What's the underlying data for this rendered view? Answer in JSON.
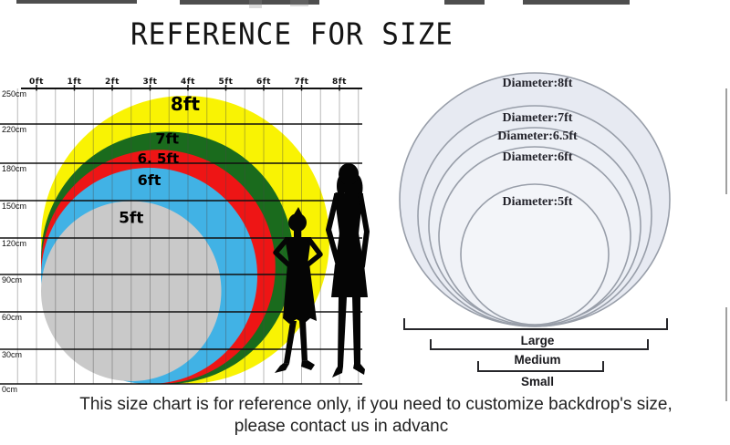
{
  "header": {
    "title": "REFERENCE FOR SIZE"
  },
  "footer": {
    "line1": "This size chart is for reference only, if you need to customize backdrop's size,",
    "line2": "please contact us in advanc"
  },
  "chart_data": [
    {
      "type": "nested-circles",
      "title": "Backdrop size comparison with human figures",
      "x_axis": {
        "unit": "ft",
        "ticks": [
          "0ft",
          "1ft",
          "2ft",
          "3ft",
          "4ft",
          "5ft",
          "6ft",
          "7ft",
          "8ft"
        ],
        "range_ft": [
          0,
          8.6
        ]
      },
      "y_axis": {
        "unit": "cm",
        "ticks": [
          "250cm",
          "220cm",
          "180cm",
          "150cm",
          "120cm",
          "90cm",
          "60cm",
          "30cm",
          "0cm"
        ],
        "range_cm": [
          0,
          250
        ]
      },
      "grid": true,
      "circles": [
        {
          "label": "8ft",
          "diameter_ft": 8,
          "color": "#f9f303"
        },
        {
          "label": "7ft",
          "diameter_ft": 7,
          "color": "#1a6b1d"
        },
        {
          "label": "6. 5ft",
          "diameter_ft": 6.5,
          "color": "#ee1515"
        },
        {
          "label": "6ft",
          "diameter_ft": 6,
          "color": "#41b2e5"
        },
        {
          "label": "5ft",
          "diameter_ft": 5,
          "color": "#c9c9c9"
        }
      ],
      "figures": [
        "child-silhouette",
        "woman-silhouette"
      ]
    },
    {
      "type": "nested-circles",
      "title": "Backdrop diameters",
      "circles": [
        {
          "label": "Diameter:8ft",
          "diameter_ft": 8
        },
        {
          "label": "Diameter:7ft",
          "diameter_ft": 7
        },
        {
          "label": "Diameter:6.5ft",
          "diameter_ft": 6.5
        },
        {
          "label": "Diameter:6ft",
          "diameter_ft": 6
        },
        {
          "label": "Diameter:5ft",
          "diameter_ft": 5
        }
      ],
      "size_groups": [
        "Large",
        "Medium",
        "Small"
      ]
    }
  ]
}
